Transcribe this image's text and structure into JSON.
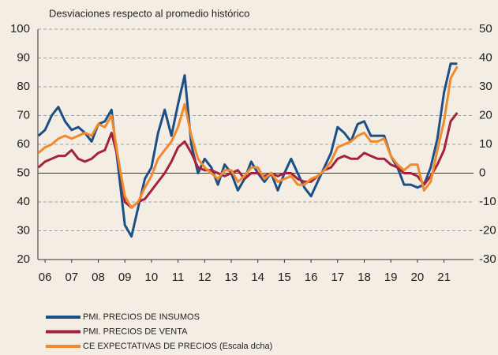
{
  "chart_data": {
    "type": "line",
    "axis_label": "Desviaciones respecto al promedio histórico",
    "x": [
      5.75,
      6,
      6.25,
      6.5,
      6.75,
      7,
      7.25,
      7.5,
      7.75,
      8,
      8.25,
      8.5,
      8.75,
      9,
      9.25,
      9.5,
      9.75,
      10,
      10.25,
      10.5,
      10.75,
      11,
      11.25,
      11.5,
      11.75,
      12,
      12.25,
      12.5,
      12.75,
      13,
      13.25,
      13.5,
      13.75,
      14,
      14.25,
      14.5,
      14.75,
      15,
      15.25,
      15.5,
      15.75,
      16,
      16.25,
      16.5,
      16.75,
      17,
      17.25,
      17.5,
      17.75,
      18,
      18.25,
      18.5,
      18.75,
      19,
      19.25,
      19.5,
      19.75,
      20,
      20.25,
      20.5,
      20.75,
      21,
      21.25,
      21.5
    ],
    "xlim": [
      5.73,
      22.11
    ],
    "xticks": [
      {
        "value": 6,
        "label": "06"
      },
      {
        "value": 7,
        "label": "07"
      },
      {
        "value": 8,
        "label": "08"
      },
      {
        "value": 9,
        "label": "09"
      },
      {
        "value": 10,
        "label": "10"
      },
      {
        "value": 11,
        "label": "11"
      },
      {
        "value": 12,
        "label": "12"
      },
      {
        "value": 13,
        "label": "13"
      },
      {
        "value": 14,
        "label": "14"
      },
      {
        "value": 15,
        "label": "15"
      },
      {
        "value": 16,
        "label": "16"
      },
      {
        "value": 17,
        "label": "17"
      },
      {
        "value": 18,
        "label": "18"
      },
      {
        "value": 19,
        "label": "19"
      },
      {
        "value": 20,
        "label": "20"
      },
      {
        "value": 21,
        "label": "21"
      }
    ],
    "ylim": [
      20,
      100
    ],
    "yticks": [
      100,
      90,
      80,
      70,
      60,
      50,
      40,
      30,
      20
    ],
    "y2lim": [
      -30,
      50
    ],
    "y2ticks": [
      50,
      40,
      30,
      20,
      10,
      0,
      -10,
      -20,
      -30
    ],
    "reference_line": 50,
    "grid": true,
    "series": [
      {
        "name": "PMI. PRECIOS DE INSUMOS",
        "color": "#1d4f87",
        "values": [
          63,
          65,
          70,
          73,
          68,
          65,
          66,
          64,
          61,
          67,
          68,
          72,
          52,
          32,
          28,
          38,
          48,
          52,
          64,
          72,
          63,
          74,
          84,
          60,
          50,
          55,
          52,
          46,
          53,
          50,
          44,
          48,
          54,
          50,
          47,
          50,
          44,
          50,
          55,
          50,
          45,
          42,
          47,
          52,
          57,
          66,
          64,
          61,
          67,
          68,
          63,
          63,
          63,
          56,
          52,
          46,
          46,
          45,
          46,
          52,
          62,
          78,
          88,
          88
        ]
      },
      {
        "name": "PMI. PRECIOS DE VENTA",
        "color": "#a3233d",
        "values": [
          52,
          54,
          55,
          56,
          56,
          58,
          55,
          54,
          55,
          57,
          58,
          64,
          55,
          40,
          38,
          40,
          41,
          44,
          47,
          50,
          54,
          59,
          61,
          57,
          52,
          51,
          51,
          50,
          49,
          50,
          51,
          48,
          50,
          50,
          49,
          50,
          49,
          50,
          50,
          48,
          47,
          47,
          49,
          51,
          52,
          55,
          56,
          55,
          55,
          57,
          56,
          55,
          55,
          53,
          52,
          50,
          50,
          49,
          46,
          49,
          53,
          58,
          68,
          71
        ]
      },
      {
        "name": "CE EXPECTATIVAS DE PRECIOS (Escala dcha)",
        "color": "#f08a2c",
        "axis": "y2",
        "values": [
          7,
          9,
          10,
          12,
          13,
          12,
          13,
          14,
          13,
          17,
          16,
          20,
          5,
          -8,
          -12,
          -10,
          -5,
          -1,
          5,
          8,
          11,
          16,
          24,
          13,
          5,
          2,
          0,
          -2,
          1,
          1,
          -3,
          -1,
          2,
          2,
          -2,
          0,
          -3,
          -2,
          -1,
          -4,
          -4,
          -2,
          -1,
          1,
          4,
          9,
          10,
          11,
          13,
          14,
          11,
          11,
          12,
          6,
          3,
          1,
          3,
          3,
          -6,
          -3,
          8,
          18,
          33,
          37
        ]
      }
    ]
  }
}
